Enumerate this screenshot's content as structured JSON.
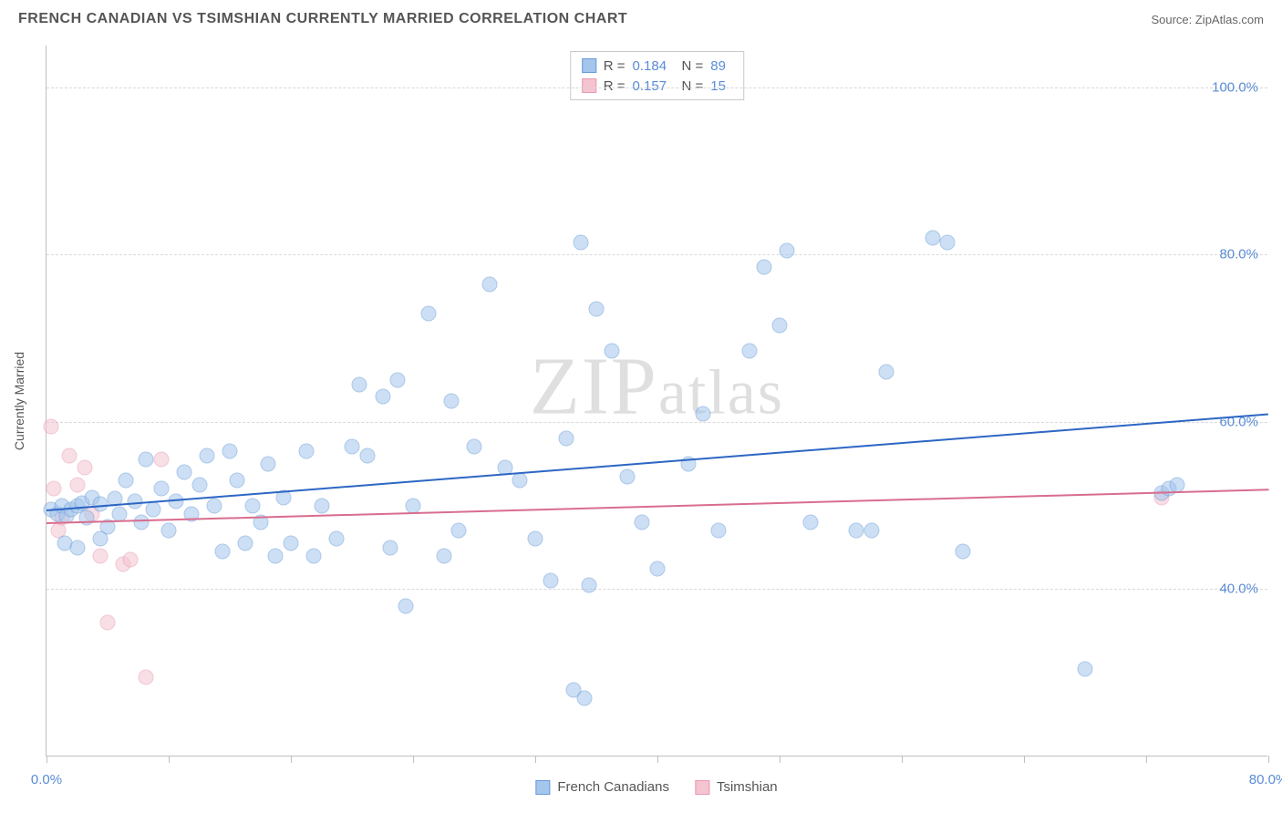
{
  "header": {
    "title": "FRENCH CANADIAN VS TSIMSHIAN CURRENTLY MARRIED CORRELATION CHART",
    "source_prefix": "Source: ",
    "source_name": "ZipAtlas.com"
  },
  "watermark": "ZIPatlas",
  "chart": {
    "type": "scatter",
    "ylabel": "Currently Married",
    "xlim": [
      0,
      80
    ],
    "ylim": [
      20,
      105
    ],
    "x_ticks": [
      0,
      8,
      16,
      24,
      32,
      40,
      48,
      56,
      64,
      72,
      80
    ],
    "x_tick_labels": {
      "0": "0.0%",
      "80": "80.0%"
    },
    "y_gridlines": [
      40,
      60,
      80,
      100
    ],
    "y_tick_labels": {
      "40": "40.0%",
      "60": "60.0%",
      "80": "80.0%",
      "100": "100.0%"
    },
    "grid_color": "#d9d9d9",
    "axis_color": "#bfbfbf",
    "background_color": "#ffffff",
    "tick_label_color": "#5a8cd6",
    "label_color": "#555555",
    "label_fontsize": 14,
    "tick_fontsize": 15,
    "marker_radius": 8.5,
    "marker_opacity": 0.55,
    "series": [
      {
        "name": "French Canadians",
        "color_fill": "#a4c5ec",
        "color_stroke": "#6a9bd8",
        "trend_color": "#2d66c4",
        "trend": {
          "x1": 0,
          "y1": 49.5,
          "x2": 80,
          "y2": 61.0
        },
        "stats_R": "0.184",
        "stats_N": "89",
        "points": [
          [
            0.3,
            49.5
          ],
          [
            0.7,
            49.0
          ],
          [
            1.0,
            50.0
          ],
          [
            1.3,
            48.8
          ],
          [
            1.6,
            49.5
          ],
          [
            2.0,
            50.0
          ],
          [
            2.3,
            50.3
          ],
          [
            2.6,
            48.5
          ],
          [
            3.0,
            51.0
          ],
          [
            3.5,
            50.2
          ],
          [
            4.0,
            47.5
          ],
          [
            4.5,
            50.8
          ],
          [
            1.2,
            45.5
          ],
          [
            2.0,
            45.0
          ],
          [
            3.5,
            46.0
          ],
          [
            4.8,
            49.0
          ],
          [
            5.2,
            53.0
          ],
          [
            5.8,
            50.5
          ],
          [
            6.2,
            48.0
          ],
          [
            6.5,
            55.5
          ],
          [
            7.0,
            49.5
          ],
          [
            7.5,
            52.0
          ],
          [
            8.0,
            47.0
          ],
          [
            8.5,
            50.5
          ],
          [
            9.0,
            54.0
          ],
          [
            9.5,
            49.0
          ],
          [
            10.0,
            52.5
          ],
          [
            10.5,
            56.0
          ],
          [
            11.0,
            50.0
          ],
          [
            11.5,
            44.5
          ],
          [
            12.0,
            56.5
          ],
          [
            12.5,
            53.0
          ],
          [
            13.0,
            45.5
          ],
          [
            13.5,
            50.0
          ],
          [
            14.0,
            48.0
          ],
          [
            14.5,
            55.0
          ],
          [
            15.0,
            44.0
          ],
          [
            15.5,
            51.0
          ],
          [
            16.0,
            45.5
          ],
          [
            17.0,
            56.5
          ],
          [
            18.0,
            50.0
          ],
          [
            19.0,
            46.0
          ],
          [
            20.0,
            57.0
          ],
          [
            20.5,
            64.5
          ],
          [
            21.0,
            56.0
          ],
          [
            22.0,
            63.0
          ],
          [
            22.5,
            45.0
          ],
          [
            23.0,
            65.0
          ],
          [
            23.5,
            38.0
          ],
          [
            24.0,
            50.0
          ],
          [
            25.0,
            73.0
          ],
          [
            26.0,
            44.0
          ],
          [
            27.0,
            47.0
          ],
          [
            28.0,
            57.0
          ],
          [
            29.0,
            76.5
          ],
          [
            30.0,
            54.5
          ],
          [
            31.0,
            53.0
          ],
          [
            32.0,
            46.0
          ],
          [
            33.0,
            41.0
          ],
          [
            34.0,
            58.0
          ],
          [
            35.0,
            81.5
          ],
          [
            35.5,
            40.5
          ],
          [
            36.0,
            73.5
          ],
          [
            37.0,
            68.5
          ],
          [
            34.5,
            28.0
          ],
          [
            35.2,
            27.0
          ],
          [
            38.0,
            53.5
          ],
          [
            39.0,
            48.0
          ],
          [
            40.0,
            42.5
          ],
          [
            42.0,
            55.0
          ],
          [
            43.0,
            61.0
          ],
          [
            44.0,
            47.0
          ],
          [
            46.0,
            68.5
          ],
          [
            47.0,
            78.5
          ],
          [
            48.0,
            71.5
          ],
          [
            50.0,
            48.0
          ],
          [
            53.0,
            47.0
          ],
          [
            54.0,
            47.0
          ],
          [
            55.0,
            66.0
          ],
          [
            58.0,
            82.0
          ],
          [
            59.0,
            81.5
          ],
          [
            60.0,
            44.5
          ],
          [
            68.0,
            30.5
          ],
          [
            73.0,
            51.5
          ],
          [
            73.5,
            52.0
          ],
          [
            74.0,
            52.5
          ],
          [
            48.5,
            80.5
          ],
          [
            26.5,
            62.5
          ],
          [
            17.5,
            44.0
          ]
        ]
      },
      {
        "name": "Tsimshian",
        "color_fill": "#f4c4d0",
        "color_stroke": "#e99ab0",
        "trend_color": "#d96d8e",
        "trend": {
          "x1": 0,
          "y1": 48.0,
          "x2": 80,
          "y2": 52.0
        },
        "stats_R": "0.157",
        "stats_N": "15",
        "points": [
          [
            0.3,
            59.5
          ],
          [
            0.8,
            47.0
          ],
          [
            1.0,
            48.5
          ],
          [
            1.5,
            56.0
          ],
          [
            2.0,
            52.5
          ],
          [
            0.5,
            52.0
          ],
          [
            2.5,
            54.5
          ],
          [
            3.0,
            49.0
          ],
          [
            3.5,
            44.0
          ],
          [
            4.0,
            36.0
          ],
          [
            5.0,
            43.0
          ],
          [
            5.5,
            43.5
          ],
          [
            6.5,
            29.5
          ],
          [
            7.5,
            55.5
          ],
          [
            73.0,
            51.0
          ]
        ]
      }
    ],
    "stats_box": {
      "r_label": "R =",
      "n_label": "N ="
    },
    "bottom_legend": [
      {
        "label": "French Canadians",
        "fill": "#a4c5ec",
        "stroke": "#6a9bd8"
      },
      {
        "label": "Tsimshian",
        "fill": "#f4c4d0",
        "stroke": "#e99ab0"
      }
    ]
  }
}
